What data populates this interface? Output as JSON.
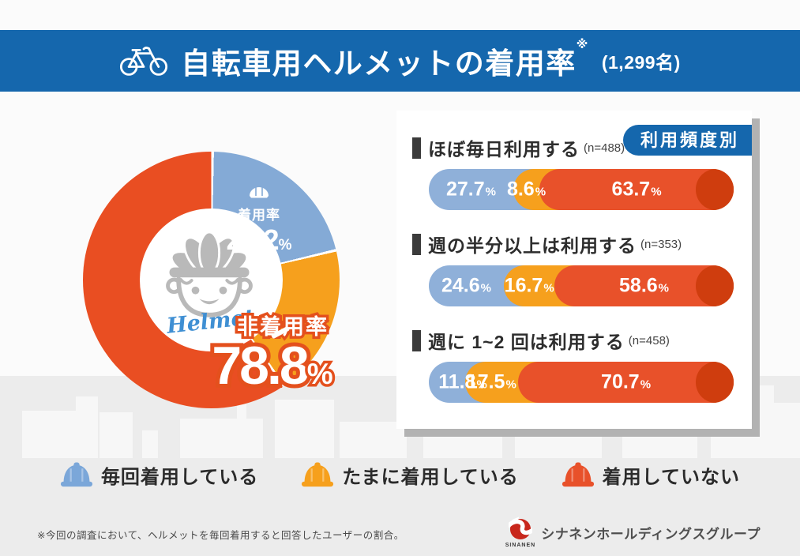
{
  "header": {
    "title": "自転車用ヘルメットの着用率",
    "footnote_mark": "※",
    "sample_size": "(1,299名)"
  },
  "donut": {
    "wear_label": "着用率",
    "wear_value": "21.2",
    "wear_unit": "%",
    "nonwear_label": "非着用率",
    "nonwear_value": "78.8",
    "nonwear_unit": "%",
    "center_script": "Helmet"
  },
  "panel": {
    "badge": "利用頻度別"
  },
  "legend": [
    {
      "label": "毎回着用している",
      "color": "#7ba7d9"
    },
    {
      "label": "たまに着用している",
      "color": "#f6a01d"
    },
    {
      "label": "着用していない",
      "color": "#e8512a"
    }
  ],
  "footnote": "※今回の調査において、ヘルメットを毎回着用すると回答したユーザーの割合。",
  "logo": {
    "mark_text": "SINANEN",
    "company": "シナネンホールディングスグループ"
  },
  "colors": {
    "header_blue": "#1567ad",
    "bar_blue": "#8fb0d9",
    "bar_orange": "#f6a01d",
    "bar_red": "#e8512a",
    "bar_cap_dark": "#cf3d0e",
    "donut_blue": "#84aad6",
    "donut_orange": "#f6a01d",
    "donut_red": "#e94e22",
    "panel_shadow": "#b2b2b2",
    "logo_red": "#c8271c"
  },
  "icons": {
    "header": "bicycle-icon",
    "donut_center": "helmet-face-icon",
    "wear_label": "helmet-mini-icon",
    "legend": "hard-hat-icon",
    "logo": "sinanen-flame-icon"
  },
  "chart_data": [
    {
      "type": "pie",
      "donut": true,
      "title": "自転車用ヘルメットの着用率 (1,299名)",
      "labels": [
        "着用率",
        "非着用率"
      ],
      "values": [
        21.2,
        78.8
      ],
      "unit": "%",
      "segments_drawn": [
        {
          "name": "毎回着用している",
          "color": "#84aad6",
          "sweep_deg": 76
        },
        {
          "name": "たまに着用している",
          "color": "#f6a01d",
          "sweep_deg": 69
        },
        {
          "name": "着用していない",
          "color": "#e94e22",
          "sweep_deg": 215
        }
      ]
    },
    {
      "type": "bar",
      "stacked": true,
      "orientation": "horizontal",
      "panel_title": "利用頻度別",
      "series": [
        "毎回着用している",
        "たまに着用している",
        "着用していない"
      ],
      "colors": [
        "#8fb0d9",
        "#f6a01d",
        "#e8512a"
      ],
      "cap_color": "#cf3d0e",
      "unit": "%",
      "xlim": [
        0,
        100
      ],
      "groups": [
        {
          "label": "ほぼ毎日利用する",
          "n_label": "(n=488)",
          "values": [
            27.7,
            8.6,
            63.7
          ]
        },
        {
          "label": "週の半分以上は利用する",
          "n_label": "(n=353)",
          "values": [
            24.6,
            16.7,
            58.6
          ]
        },
        {
          "label": "週に 1~2 回は利用する",
          "n_label": "(n=458)",
          "values": [
            11.8,
            17.5,
            70.7
          ]
        }
      ]
    }
  ]
}
